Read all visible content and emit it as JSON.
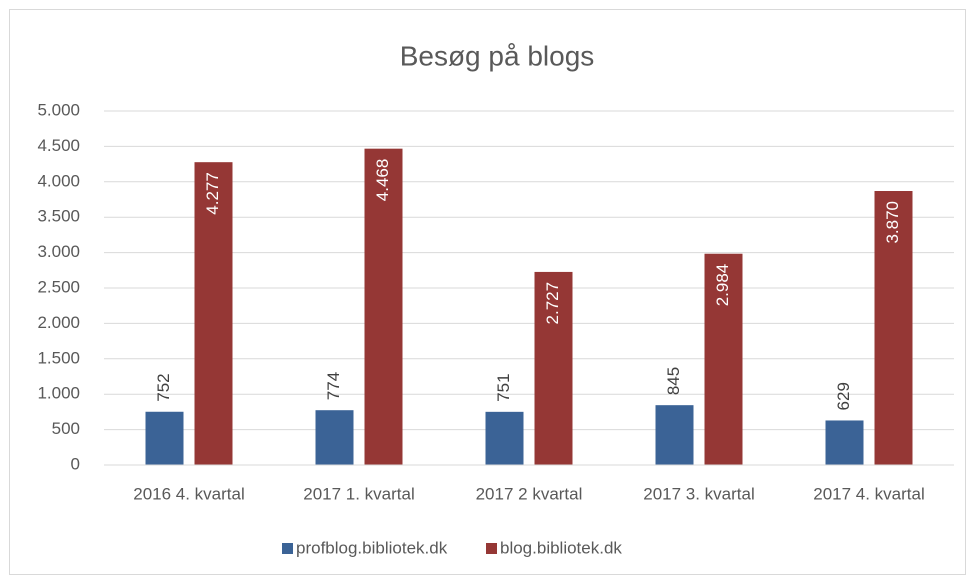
{
  "chart_data": {
    "type": "bar",
    "title": "Besøg på blogs",
    "categories": [
      "2016 4. kvartal",
      "2017 1. kvartal",
      "2017 2 kvartal",
      "2017 3. kvartal",
      "2017 4. kvartal"
    ],
    "series": [
      {
        "name": "profblog.bibliotek.dk",
        "color": "#3b6396",
        "values": [
          752,
          774,
          751,
          845,
          629
        ]
      },
      {
        "name": "blog.bibliotek.dk",
        "color": "#953735",
        "values": [
          4277,
          4468,
          2727,
          2984,
          3870
        ],
        "value_labels": [
          "4.277",
          "4.468",
          "2.727",
          "2.984",
          "3.870"
        ]
      }
    ],
    "ylim": [
      0,
      5000
    ],
    "yticks": [
      0,
      {
        "value": 500,
        "label": "500"
      },
      {
        "value": 1000,
        "label": "1.000"
      },
      {
        "value": 1500,
        "label": "1.500"
      },
      {
        "value": 2000,
        "label": "2.000"
      },
      {
        "value": 2500,
        "label": "2.500"
      },
      {
        "value": 3000,
        "label": "3.000"
      },
      {
        "value": 3500,
        "label": "3.500"
      },
      {
        "value": 4000,
        "label": "4.000"
      },
      {
        "value": 4500,
        "label": "4.500"
      },
      {
        "value": 5000,
        "label": "5.000"
      }
    ],
    "grid": true,
    "legend": "bottom"
  }
}
